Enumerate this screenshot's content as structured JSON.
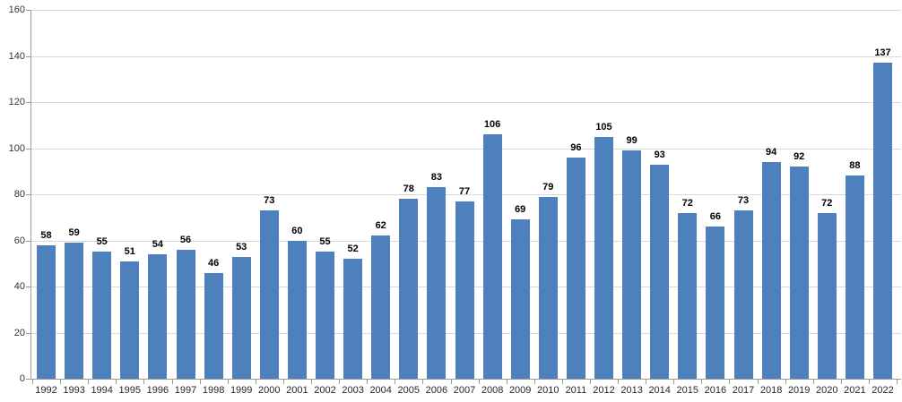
{
  "chart_data": {
    "type": "bar",
    "title": "",
    "xlabel": "",
    "ylabel": "",
    "categories": [
      "1992",
      "1993",
      "1994",
      "1995",
      "1996",
      "1997",
      "1998",
      "1999",
      "2000",
      "2001",
      "2002",
      "2003",
      "2004",
      "2005",
      "2006",
      "2007",
      "2008",
      "2009",
      "2010",
      "2011",
      "2012",
      "2013",
      "2014",
      "2015",
      "2016",
      "2017",
      "2018",
      "2019",
      "2020",
      "2021",
      "2022"
    ],
    "values": [
      58,
      59,
      55,
      51,
      54,
      56,
      46,
      53,
      73,
      60,
      55,
      52,
      62,
      78,
      83,
      77,
      106,
      69,
      79,
      96,
      105,
      99,
      93,
      72,
      66,
      73,
      94,
      92,
      72,
      88,
      137
    ],
    "data_labels": [
      "58",
      "59",
      "55",
      "51",
      "54",
      "56",
      "46",
      "53",
      "73",
      "60",
      "55",
      "52",
      "62",
      "78",
      "83",
      "77",
      "106",
      "69",
      "79",
      "96",
      "105",
      "99",
      "93",
      "72",
      "66",
      "73",
      "94",
      "92",
      "72",
      "88",
      "137"
    ],
    "ylim": [
      0,
      160
    ],
    "yticks": [
      0,
      20,
      40,
      60,
      80,
      100,
      120,
      140,
      160
    ],
    "ytick_labels": [
      "0",
      "20",
      "40",
      "60",
      "80",
      "100",
      "120",
      "140",
      "160"
    ],
    "grid": true,
    "legend": "none",
    "colors": {
      "bar_fill": "#4e80bd",
      "gridline": "#d9d9d9",
      "axis_line": "#9a9a9a",
      "axis_label_text": "#333333",
      "data_label_text": "#000000",
      "background": "#ffffff"
    }
  }
}
